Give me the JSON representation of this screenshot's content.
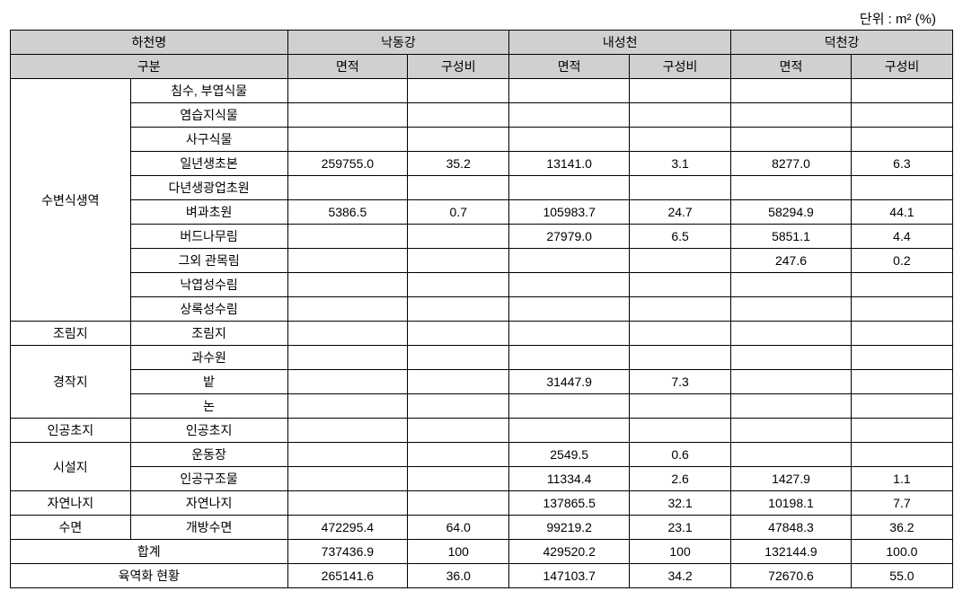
{
  "unit_label": "단위 : m² (%)",
  "header": {
    "river_name": "하천명",
    "classification": "구분",
    "rivers": [
      "낙동강",
      "내성천",
      "덕천강"
    ],
    "subheaders": [
      "면적",
      "구성비"
    ]
  },
  "groups": [
    {
      "name": "수변식생역",
      "items": [
        {
          "label": "침수, 부엽식물",
          "vals": [
            "",
            "",
            "",
            "",
            "",
            ""
          ]
        },
        {
          "label": "염습지식물",
          "vals": [
            "",
            "",
            "",
            "",
            "",
            ""
          ]
        },
        {
          "label": "사구식물",
          "vals": [
            "",
            "",
            "",
            "",
            "",
            ""
          ]
        },
        {
          "label": "일년생초본",
          "vals": [
            "259755.0",
            "35.2",
            "13141.0",
            "3.1",
            "8277.0",
            "6.3"
          ]
        },
        {
          "label": "다년생광업초원",
          "vals": [
            "",
            "",
            "",
            "",
            "",
            ""
          ]
        },
        {
          "label": "벼과초원",
          "vals": [
            "5386.5",
            "0.7",
            "105983.7",
            "24.7",
            "58294.9",
            "44.1"
          ]
        },
        {
          "label": "버드나무림",
          "vals": [
            "",
            "",
            "27979.0",
            "6.5",
            "5851.1",
            "4.4"
          ]
        },
        {
          "label": "그외 관목림",
          "vals": [
            "",
            "",
            "",
            "",
            "247.6",
            "0.2"
          ]
        },
        {
          "label": "낙엽성수림",
          "vals": [
            "",
            "",
            "",
            "",
            "",
            ""
          ]
        },
        {
          "label": "상록성수림",
          "vals": [
            "",
            "",
            "",
            "",
            "",
            ""
          ]
        }
      ]
    },
    {
      "name": "조림지",
      "items": [
        {
          "label": "조림지",
          "vals": [
            "",
            "",
            "",
            "",
            "",
            ""
          ]
        }
      ]
    },
    {
      "name": "경작지",
      "items": [
        {
          "label": "과수원",
          "vals": [
            "",
            "",
            "",
            "",
            "",
            ""
          ]
        },
        {
          "label": "밭",
          "vals": [
            "",
            "",
            "31447.9",
            "7.3",
            "",
            ""
          ]
        },
        {
          "label": "논",
          "vals": [
            "",
            "",
            "",
            "",
            "",
            ""
          ]
        }
      ]
    },
    {
      "name": "인공초지",
      "items": [
        {
          "label": "인공초지",
          "vals": [
            "",
            "",
            "",
            "",
            "",
            ""
          ]
        }
      ]
    },
    {
      "name": "시설지",
      "items": [
        {
          "label": "운동장",
          "vals": [
            "",
            "",
            "2549.5",
            "0.6",
            "",
            ""
          ]
        },
        {
          "label": "인공구조물",
          "vals": [
            "",
            "",
            "11334.4",
            "2.6",
            "1427.9",
            "1.1"
          ]
        }
      ]
    },
    {
      "name": "자연나지",
      "items": [
        {
          "label": "자연나지",
          "vals": [
            "",
            "",
            "137865.5",
            "32.1",
            "10198.1",
            "7.7"
          ]
        }
      ]
    },
    {
      "name": "수면",
      "items": [
        {
          "label": "개방수면",
          "vals": [
            "472295.4",
            "64.0",
            "99219.2",
            "23.1",
            "47848.3",
            "36.2"
          ]
        }
      ]
    }
  ],
  "totals": [
    {
      "label": "합계",
      "vals": [
        "737436.9",
        "100",
        "429520.2",
        "100",
        "132144.9",
        "100.0"
      ]
    },
    {
      "label": "육역화 현황",
      "vals": [
        "265141.6",
        "36.0",
        "147103.7",
        "34.2",
        "72670.6",
        "55.0"
      ]
    }
  ],
  "style": {
    "header_bg": "#d0d0d0",
    "border_color": "#000000",
    "font_size": 14
  }
}
